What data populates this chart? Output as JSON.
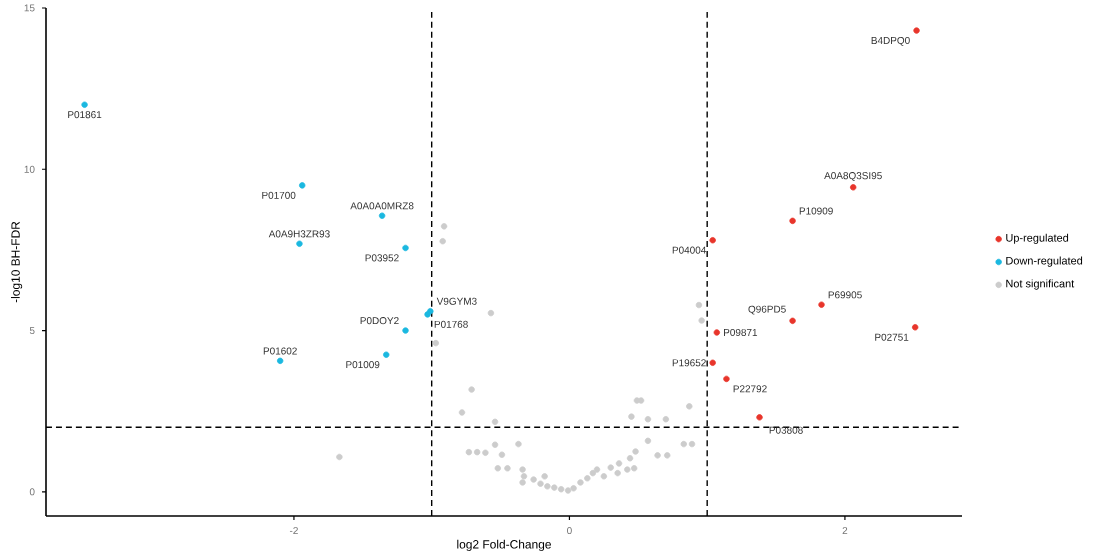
{
  "chart_data": {
    "type": "scatter",
    "xlabel": "log2 Fold-Change",
    "ylabel": "-log10 BH-FDR",
    "xlim": [
      -3.8,
      2.85
    ],
    "ylim": [
      -0.75,
      15
    ],
    "xticks": [
      -2,
      0,
      2
    ],
    "yticks": [
      0,
      5,
      10,
      15
    ],
    "grid": false,
    "legend": "right",
    "series": [
      {
        "name": "Up-regulated",
        "color": "#e8352b",
        "x": [
          2.52,
          2.06,
          1.62,
          1.04,
          1.83,
          1.62,
          2.51,
          1.07,
          1.04,
          1.14,
          1.38
        ],
        "values": [
          14.3,
          9.44,
          8.4,
          7.8,
          5.8,
          5.3,
          5.1,
          4.94,
          4.0,
          3.5,
          2.31
        ]
      },
      {
        "name": "Down-regulated",
        "color": "#1ab8e0",
        "x": [
          -3.52,
          -1.94,
          -1.36,
          -1.96,
          -1.19,
          -1.01,
          -1.03,
          -1.19,
          -1.33,
          -2.1
        ],
        "values": [
          12.0,
          9.5,
          8.56,
          7.69,
          7.56,
          5.6,
          5.5,
          5.0,
          4.25,
          4.06
        ]
      },
      {
        "name": "Not significant",
        "color": "#cccccc",
        "x": [
          -0.91,
          -0.92,
          -0.57,
          -0.97,
          -0.71,
          -0.78,
          -0.54,
          -0.73,
          -0.67,
          -0.61,
          -0.54,
          -0.37,
          -0.49,
          -0.52,
          -0.45,
          -0.34,
          -0.33,
          -0.34,
          -0.26,
          -0.21,
          -0.16,
          -0.11,
          -0.06,
          -0.01,
          0.03,
          0.08,
          0.13,
          0.17,
          0.2,
          0.25,
          0.3,
          0.35,
          0.36,
          0.44,
          0.42,
          0.47,
          0.48,
          0.57,
          0.64,
          0.71,
          0.45,
          0.57,
          0.7,
          0.49,
          0.52,
          0.87,
          0.83,
          0.89,
          0.94,
          0.96,
          -1.67,
          -0.18
        ],
        "values": [
          8.23,
          7.77,
          5.54,
          4.61,
          3.17,
          2.46,
          2.17,
          1.23,
          1.23,
          1.21,
          1.46,
          1.48,
          1.15,
          0.73,
          0.73,
          0.69,
          0.48,
          0.29,
          0.38,
          0.25,
          0.17,
          0.13,
          0.08,
          0.04,
          0.11,
          0.29,
          0.42,
          0.58,
          0.69,
          0.48,
          0.75,
          0.58,
          0.88,
          1.04,
          0.69,
          0.73,
          1.25,
          1.58,
          1.13,
          1.13,
          2.33,
          2.25,
          2.25,
          2.83,
          2.83,
          2.65,
          1.48,
          1.48,
          5.79,
          5.31,
          1.08,
          0.48
        ]
      }
    ],
    "ref_lines": [
      {
        "axis": "x",
        "value": -1,
        "line_style": "dashed"
      },
      {
        "axis": "x",
        "value": 1,
        "line_style": "dashed"
      },
      {
        "axis": "y",
        "value": 2,
        "line_style": "dashed"
      }
    ],
    "annotations": [
      {
        "text": "B4DPQ0",
        "x": 2.52,
        "y": 14.3
      },
      {
        "text": "A0A8Q3SI95",
        "x": 2.06,
        "y": 9.44
      },
      {
        "text": "P10909",
        "x": 1.62,
        "y": 8.4
      },
      {
        "text": "P04004",
        "x": 1.04,
        "y": 7.8
      },
      {
        "text": "P69905",
        "x": 1.83,
        "y": 5.8
      },
      {
        "text": "Q96PD5",
        "x": 1.62,
        "y": 5.3
      },
      {
        "text": "P02751",
        "x": 2.51,
        "y": 5.1
      },
      {
        "text": "P09871",
        "x": 1.07,
        "y": 4.94
      },
      {
        "text": "P19652",
        "x": 1.04,
        "y": 4.0
      },
      {
        "text": "P22792",
        "x": 1.14,
        "y": 3.5
      },
      {
        "text": "P03808",
        "x": 1.38,
        "y": 2.31
      },
      {
        "text": "P01861",
        "x": -3.52,
        "y": 12.0
      },
      {
        "text": "P01700",
        "x": -1.94,
        "y": 9.5
      },
      {
        "text": "A0A0A0MRZ8",
        "x": -1.36,
        "y": 8.56
      },
      {
        "text": "A0A9H3ZR93",
        "x": -1.96,
        "y": 7.69
      },
      {
        "text": "P03952",
        "x": -1.19,
        "y": 7.56
      },
      {
        "text": "V9GYM3",
        "x": -1.01,
        "y": 5.6
      },
      {
        "text": "P01768",
        "x": -1.03,
        "y": 5.5
      },
      {
        "text": "P0DOY2",
        "x": -1.19,
        "y": 5.0
      },
      {
        "text": "P01009",
        "x": -1.33,
        "y": 4.25
      },
      {
        "text": "P01602",
        "x": -2.1,
        "y": 4.06
      }
    ]
  }
}
